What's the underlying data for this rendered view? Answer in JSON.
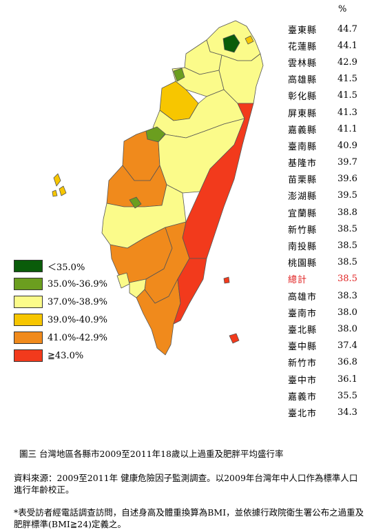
{
  "map": {
    "colors": {
      "lt35": "#0a5c0a",
      "c35_369": "#6b9e1f",
      "c37_389": "#fbfb8a",
      "c39_409": "#f7c600",
      "c41_429": "#f08a1c",
      "ge43": "#f23a1c"
    }
  },
  "legend": {
    "items": [
      {
        "label": "＜35.0%",
        "color": "#0a5c0a"
      },
      {
        "label": "35.0%-36.9%",
        "color": "#6b9e1f"
      },
      {
        "label": "37.0%-38.9%",
        "color": "#fbfb8a"
      },
      {
        "label": "39.0%-40.9%",
        "color": "#f7c600"
      },
      {
        "label": "41.0%-42.9%",
        "color": "#f08a1c"
      },
      {
        "label": "≧43.0%",
        "color": "#f23a1c"
      }
    ]
  },
  "ranking": {
    "unit": "%",
    "rows": [
      {
        "name": "臺東縣",
        "value": "44.7"
      },
      {
        "name": "花蓮縣",
        "value": "44.1"
      },
      {
        "name": "雲林縣",
        "value": "42.9"
      },
      {
        "name": "高雄縣",
        "value": "41.5"
      },
      {
        "name": "彰化縣",
        "value": "41.5"
      },
      {
        "name": "屏東縣",
        "value": "41.3"
      },
      {
        "name": "嘉義縣",
        "value": "41.1"
      },
      {
        "name": "臺南縣",
        "value": "40.9"
      },
      {
        "name": "基隆市",
        "value": "39.7"
      },
      {
        "name": "苗栗縣",
        "value": "39.6"
      },
      {
        "name": "澎湖縣",
        "value": "39.5"
      },
      {
        "name": "宜蘭縣",
        "value": "38.8"
      },
      {
        "name": "新竹縣",
        "value": "38.5"
      },
      {
        "name": "南投縣",
        "value": "38.5"
      },
      {
        "name": "桃園縣",
        "value": "38.5"
      },
      {
        "name": "總計",
        "value": "38.5"
      },
      {
        "name": "高雄市",
        "value": "38.3"
      },
      {
        "name": "臺南市",
        "value": "38.0"
      },
      {
        "name": "臺北縣",
        "value": "38.0"
      },
      {
        "name": "臺中縣",
        "value": "37.4"
      },
      {
        "name": "新竹市",
        "value": "36.8"
      },
      {
        "name": "臺中市",
        "value": "36.1"
      },
      {
        "name": "嘉義市",
        "value": "35.5"
      },
      {
        "name": "臺北市",
        "value": "34.3"
      }
    ]
  },
  "caption": "圖三 台灣地區各縣市2009至2011年18歲以上過重及肥胖平均盛行率",
  "source": "資料來源：2009至2011年 健康危險因子監測調查。以2009年台灣年中人口作為標準人口進行年齡校正。",
  "note": "*表受訪者經電話調查訪問，自述身高及體重換算為BMI，並依據行政院衛生署公布之過重及肥胖標準(BMI≧24)定義之。"
}
